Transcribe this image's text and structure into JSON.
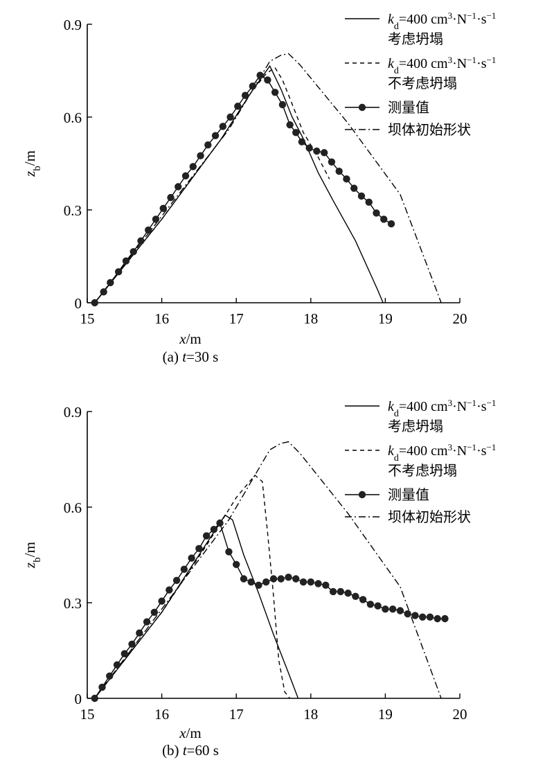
{
  "chart_data": [
    {
      "type": "line",
      "caption_prefix": "(a) ",
      "caption_var": "t",
      "caption_rest": "=30 s",
      "xlabel_var": "x",
      "xlabel_unit": "/m",
      "ylabel_var": "z",
      "ylabel_sub": "b",
      "ylabel_unit": "/m",
      "xlim": [
        15,
        20
      ],
      "ylim": [
        0,
        0.9
      ],
      "xticks": [
        "15",
        "16",
        "17",
        "18",
        "19",
        "20"
      ],
      "yticks": [
        "0",
        "0.3",
        "0.6",
        "0.9"
      ],
      "grid": false,
      "legend_position": "top-right",
      "legend": [
        {
          "style": "solid",
          "var": "k",
          "sub": "d",
          "eq": "=400 cm",
          "sup1": "3",
          "mid1": "·N",
          "sup2": "−1",
          "mid2": "·s",
          "sup3": "−1",
          "line2": "考虑坍塌"
        },
        {
          "style": "dashed",
          "var": "k",
          "sub": "d",
          "eq": "=400 cm",
          "sup1": "3",
          "mid1": "·N",
          "sup2": "−1",
          "mid2": "·s",
          "sup3": "−1",
          "line2": "不考虑坍塌"
        },
        {
          "style": "marker",
          "text": "测量值"
        },
        {
          "style": "dashdot",
          "text": "坝体初始形状"
        }
      ],
      "series": [
        {
          "style": "solid",
          "x": [
            15.1,
            16.0,
            16.8,
            17.2,
            17.45,
            17.6,
            17.75,
            17.9,
            18.1,
            18.3,
            18.6,
            18.9,
            18.97
          ],
          "y": [
            0.0,
            0.27,
            0.53,
            0.68,
            0.765,
            0.69,
            0.6,
            0.53,
            0.42,
            0.33,
            0.2,
            0.04,
            0.0
          ]
        },
        {
          "style": "dashed",
          "x": [
            15.1,
            16.0,
            16.8,
            17.2,
            17.4,
            17.52,
            17.62,
            17.72,
            17.9,
            18.1,
            18.25
          ],
          "y": [
            0.0,
            0.27,
            0.53,
            0.68,
            0.74,
            0.76,
            0.72,
            0.66,
            0.55,
            0.47,
            0.4
          ]
        },
        {
          "style": "dashdot",
          "x": [
            15.1,
            16.0,
            16.9,
            17.45,
            17.6,
            17.7,
            17.85,
            18.5,
            19.2,
            19.75
          ],
          "y": [
            0.0,
            0.28,
            0.56,
            0.78,
            0.8,
            0.805,
            0.77,
            0.58,
            0.35,
            0.0
          ]
        },
        {
          "style": "marker",
          "x": [
            15.1,
            15.22,
            15.31,
            15.42,
            15.52,
            15.62,
            15.72,
            15.82,
            15.92,
            16.02,
            16.12,
            16.22,
            16.32,
            16.42,
            16.52,
            16.62,
            16.72,
            16.82,
            16.92,
            17.02,
            17.12,
            17.22,
            17.32,
            17.42,
            17.52,
            17.62,
            17.72,
            17.8,
            17.88,
            17.98,
            18.08,
            18.18,
            18.28,
            18.38,
            18.48,
            18.58,
            18.68,
            18.78,
            18.88,
            18.98,
            19.08
          ],
          "y": [
            0.0,
            0.035,
            0.065,
            0.1,
            0.135,
            0.165,
            0.2,
            0.235,
            0.27,
            0.305,
            0.34,
            0.375,
            0.41,
            0.44,
            0.475,
            0.51,
            0.54,
            0.57,
            0.6,
            0.635,
            0.67,
            0.7,
            0.735,
            0.72,
            0.68,
            0.64,
            0.575,
            0.55,
            0.52,
            0.5,
            0.49,
            0.485,
            0.455,
            0.425,
            0.4,
            0.37,
            0.345,
            0.325,
            0.29,
            0.27,
            0.255
          ]
        }
      ]
    },
    {
      "type": "line",
      "caption_prefix": "(b) ",
      "caption_var": "t",
      "caption_rest": "=60 s",
      "xlabel_var": "x",
      "xlabel_unit": "/m",
      "ylabel_var": "z",
      "ylabel_sub": "b",
      "ylabel_unit": "/m",
      "xlim": [
        15,
        20
      ],
      "ylim": [
        0,
        0.9
      ],
      "xticks": [
        "15",
        "16",
        "17",
        "18",
        "19",
        "20"
      ],
      "yticks": [
        "0",
        "0.3",
        "0.6",
        "0.9"
      ],
      "grid": false,
      "legend_position": "top-right",
      "legend": [
        {
          "style": "solid",
          "var": "k",
          "sub": "d",
          "eq": "=400 cm",
          "sup1": "3",
          "mid1": "·N",
          "sup2": "−1",
          "mid2": "·s",
          "sup3": "−1",
          "line2": "考虑坍塌"
        },
        {
          "style": "dashed",
          "var": "k",
          "sub": "d",
          "eq": "=400 cm",
          "sup1": "3",
          "mid1": "·N",
          "sup2": "−1",
          "mid2": "·s",
          "sup3": "−1",
          "line2": "不考虑坍塌"
        },
        {
          "style": "marker",
          "text": "测量值"
        },
        {
          "style": "dashdot",
          "text": "坝体初始形状"
        }
      ],
      "series": [
        {
          "style": "solid",
          "x": [
            15.1,
            16.0,
            16.5,
            16.85,
            16.95,
            17.1,
            17.3,
            17.5,
            17.7,
            17.83
          ],
          "y": [
            0.0,
            0.27,
            0.45,
            0.575,
            0.56,
            0.45,
            0.33,
            0.2,
            0.08,
            0.0
          ]
        },
        {
          "style": "dashed",
          "x": [
            15.1,
            16.0,
            16.6,
            17.0,
            17.25,
            17.35,
            17.42,
            17.5,
            17.57,
            17.65,
            17.72
          ],
          "y": [
            0.0,
            0.27,
            0.48,
            0.63,
            0.7,
            0.68,
            0.52,
            0.32,
            0.12,
            0.02,
            0.0
          ]
        },
        {
          "style": "dashdot",
          "x": [
            15.1,
            16.0,
            16.9,
            17.45,
            17.6,
            17.7,
            17.85,
            18.5,
            19.2,
            19.75
          ],
          "y": [
            0.0,
            0.28,
            0.56,
            0.78,
            0.8,
            0.805,
            0.77,
            0.58,
            0.35,
            0.0
          ]
        },
        {
          "style": "marker",
          "x": [
            15.1,
            15.2,
            15.3,
            15.4,
            15.5,
            15.6,
            15.7,
            15.8,
            15.9,
            16.0,
            16.1,
            16.2,
            16.3,
            16.4,
            16.5,
            16.6,
            16.7,
            16.78,
            16.9,
            17.0,
            17.1,
            17.2,
            17.3,
            17.4,
            17.5,
            17.6,
            17.7,
            17.8,
            17.9,
            18.0,
            18.1,
            18.2,
            18.3,
            18.4,
            18.5,
            18.6,
            18.7,
            18.8,
            18.9,
            19.0,
            19.1,
            19.2,
            19.3,
            19.4,
            19.5,
            19.6,
            19.7,
            19.8
          ],
          "y": [
            0.0,
            0.035,
            0.07,
            0.105,
            0.14,
            0.17,
            0.205,
            0.24,
            0.27,
            0.305,
            0.34,
            0.37,
            0.405,
            0.44,
            0.47,
            0.51,
            0.53,
            0.55,
            0.46,
            0.42,
            0.375,
            0.365,
            0.355,
            0.365,
            0.375,
            0.375,
            0.38,
            0.375,
            0.365,
            0.365,
            0.36,
            0.355,
            0.335,
            0.335,
            0.33,
            0.32,
            0.31,
            0.295,
            0.29,
            0.28,
            0.28,
            0.275,
            0.265,
            0.26,
            0.255,
            0.255,
            0.25,
            0.25
          ]
        }
      ]
    }
  ]
}
